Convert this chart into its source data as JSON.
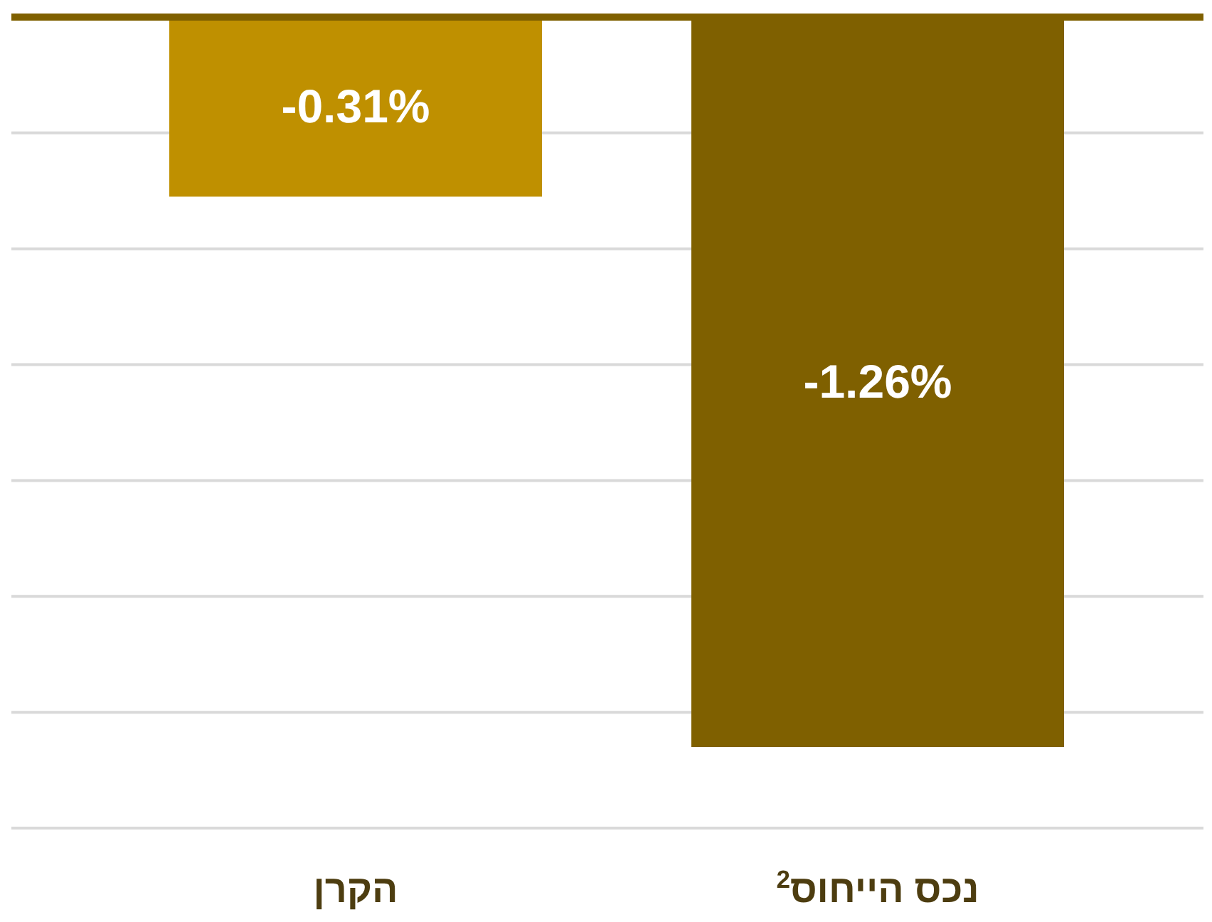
{
  "chart_data": {
    "type": "bar",
    "categories": [
      "הקרן",
      "נכס הייחוס$^{2}$"
    ],
    "values": [
      -0.31,
      -1.26
    ],
    "colors": [
      "#bf9000",
      "#7f6000"
    ],
    "value_labels": [
      "-0.31%",
      "-1.26%"
    ],
    "ylim": [
      -1.4,
      0
    ],
    "yticks": [
      {
        "value": 0,
        "label": null
      },
      {
        "value": -0.2,
        "label": null
      },
      {
        "value": -0.4,
        "label": null
      },
      {
        "value": -0.6,
        "label": null
      },
      {
        "value": -0.8,
        "label": null
      },
      {
        "value": -1.0,
        "label": null
      },
      {
        "value": -1.2,
        "label": null
      },
      {
        "value": -1.4,
        "label": null
      }
    ],
    "grid": "y",
    "tick_labels": "x"
  }
}
